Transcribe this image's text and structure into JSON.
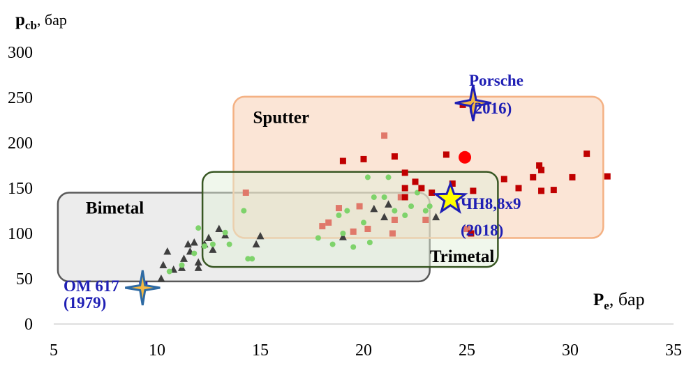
{
  "chart_data": {
    "type": "scatter",
    "ylabel": {
      "main": "p",
      "sub": "cb",
      "unit": ", бар"
    },
    "xlabel": {
      "main": "P",
      "sub": "e",
      "unit": ", бар"
    },
    "xlim": [
      5,
      35
    ],
    "ylim": [
      0,
      300
    ],
    "x_ticks": [
      "5",
      "10",
      "15",
      "20",
      "25",
      "30",
      "35"
    ],
    "y_ticks": [
      "0",
      "50",
      "100",
      "150",
      "200",
      "250",
      "300"
    ],
    "grid": false,
    "regions": [
      {
        "name": "Bimetal",
        "x": [
          5.2,
          23.2
        ],
        "y": [
          47,
          145
        ],
        "fill": "#d9d9d9",
        "stroke": "#595959"
      },
      {
        "name": "Sputter",
        "x": [
          13.7,
          31.6
        ],
        "y": [
          95,
          251
        ],
        "fill": "#f8cbad",
        "stroke": "#f4b183"
      },
      {
        "name": "Trimetal",
        "x": [
          12.2,
          26.5
        ],
        "y": [
          63,
          168
        ],
        "fill": "#e2f0d9",
        "stroke": "#385723"
      }
    ],
    "series": [
      {
        "marker": "triangle",
        "color": "#3f3f3f",
        "points": [
          [
            10.2,
            50
          ],
          [
            10.3,
            65
          ],
          [
            10.5,
            80
          ],
          [
            10.8,
            60
          ],
          [
            11.2,
            62
          ],
          [
            11.3,
            72
          ],
          [
            11.5,
            88
          ],
          [
            11.6,
            80
          ],
          [
            11.8,
            90
          ],
          [
            12.0,
            68
          ],
          [
            12.0,
            62
          ],
          [
            12.3,
            88
          ],
          [
            12.5,
            95
          ],
          [
            12.7,
            82
          ],
          [
            13.0,
            105
          ],
          [
            13.3,
            98
          ],
          [
            14.8,
            88
          ],
          [
            15.0,
            97
          ],
          [
            19.0,
            96
          ],
          [
            20.5,
            127
          ],
          [
            21.0,
            118
          ],
          [
            21.2,
            132
          ],
          [
            23.5,
            118
          ]
        ]
      },
      {
        "marker": "circle",
        "color": "#7ed36b",
        "points": [
          [
            10.6,
            58
          ],
          [
            11.2,
            65
          ],
          [
            11.8,
            78
          ],
          [
            12.0,
            106
          ],
          [
            12.3,
            86
          ],
          [
            12.7,
            88
          ],
          [
            13.3,
            101
          ],
          [
            13.5,
            88
          ],
          [
            14.2,
            125
          ],
          [
            14.4,
            72
          ],
          [
            14.6,
            72
          ],
          [
            17.8,
            95
          ],
          [
            18.0,
            108
          ],
          [
            18.3,
            112
          ],
          [
            18.5,
            88
          ],
          [
            18.8,
            120
          ],
          [
            19.0,
            100
          ],
          [
            19.2,
            125
          ],
          [
            19.5,
            85
          ],
          [
            20.0,
            112
          ],
          [
            20.2,
            162
          ],
          [
            20.3,
            90
          ],
          [
            20.5,
            140
          ],
          [
            21.0,
            140
          ],
          [
            21.2,
            162
          ],
          [
            21.5,
            125
          ],
          [
            22.0,
            120
          ],
          [
            22.3,
            130
          ],
          [
            22.6,
            145
          ],
          [
            23.0,
            125
          ],
          [
            23.2,
            130
          ]
        ]
      },
      {
        "marker": "square",
        "color": "#e0786a",
        "points": [
          [
            14.3,
            145
          ],
          [
            18.0,
            108
          ],
          [
            18.3,
            112
          ],
          [
            18.8,
            128
          ],
          [
            19.5,
            102
          ],
          [
            19.8,
            130
          ],
          [
            20.2,
            105
          ],
          [
            21.0,
            208
          ],
          [
            21.4,
            100
          ],
          [
            21.5,
            115
          ],
          [
            21.8,
            140
          ],
          [
            23.0,
            115
          ],
          [
            24.5,
            130
          ],
          [
            25.0,
            105
          ]
        ]
      },
      {
        "marker": "square",
        "color": "#c00000",
        "points": [
          [
            19.0,
            180
          ],
          [
            20.0,
            182
          ],
          [
            21.5,
            185
          ],
          [
            22.0,
            167
          ],
          [
            22.0,
            140
          ],
          [
            22.0,
            150
          ],
          [
            22.5,
            157
          ],
          [
            22.8,
            150
          ],
          [
            23.3,
            145
          ],
          [
            24.0,
            187
          ],
          [
            24.3,
            155
          ],
          [
            24.8,
            242
          ],
          [
            25.2,
            100
          ],
          [
            25.3,
            147
          ],
          [
            26.8,
            160
          ],
          [
            27.5,
            150
          ],
          [
            28.2,
            162
          ],
          [
            28.5,
            175
          ],
          [
            28.6,
            170
          ],
          [
            28.6,
            147
          ],
          [
            29.2,
            148
          ],
          [
            30.1,
            162
          ],
          [
            30.8,
            188
          ],
          [
            31.8,
            163
          ]
        ]
      }
    ],
    "highlight_point": {
      "x": 24.9,
      "y": 184,
      "color": "#ff0000"
    },
    "annotations": [
      {
        "text": "Porsche",
        "text2": "(2016)",
        "x": 25.3,
        "y": 244,
        "color": "#f4b942"
      },
      {
        "text": "ЧН8,8х9",
        "text2": "(2018)",
        "x": 24.2,
        "y": 138,
        "color": "#ffff00"
      },
      {
        "text": "ОМ 617",
        "text2": "(1979)",
        "x": 9.3,
        "y": 40,
        "color": "#f4b942"
      }
    ]
  }
}
